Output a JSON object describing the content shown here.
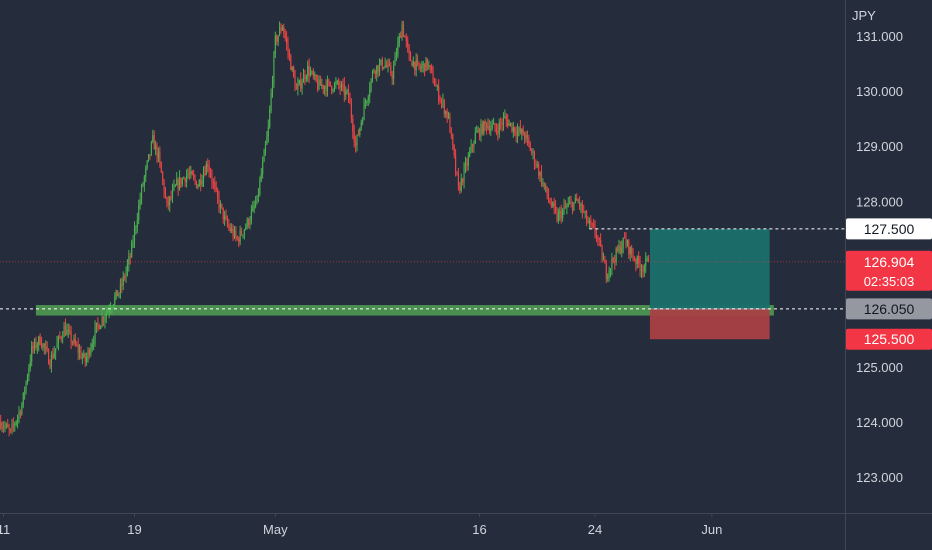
{
  "chart_data": {
    "type": "candlestick",
    "unit_label": "JPY",
    "y_axis": {
      "ylim": [
        122.35,
        131.65
      ],
      "ticks": [
        "131.000",
        "130.000",
        "129.000",
        "128.000",
        "125.000",
        "124.000",
        "123.000"
      ],
      "tick_values": [
        131,
        130,
        129,
        128,
        125,
        124,
        123
      ]
    },
    "x_axis": {
      "labels": [
        "11",
        "19",
        "May",
        "16",
        "24",
        "Jun"
      ],
      "label_index": [
        2,
        95,
        195,
        340,
        422,
        505
      ],
      "total_bars": 600
    },
    "candle_count": 460,
    "path_anchors": [
      [
        0,
        124.0
      ],
      [
        7,
        123.8
      ],
      [
        15,
        124.3
      ],
      [
        22,
        125.3
      ],
      [
        28,
        125.5
      ],
      [
        35,
        125.1
      ],
      [
        45,
        125.7
      ],
      [
        55,
        125.3
      ],
      [
        60,
        125.1
      ],
      [
        68,
        125.7
      ],
      [
        75,
        126.0
      ],
      [
        85,
        126.4
      ],
      [
        92,
        127.0
      ],
      [
        100,
        128.2
      ],
      [
        108,
        129.1
      ],
      [
        112,
        128.8
      ],
      [
        118,
        127.9
      ],
      [
        125,
        128.3
      ],
      [
        133,
        128.5
      ],
      [
        140,
        128.3
      ],
      [
        147,
        128.7
      ],
      [
        153,
        128.1
      ],
      [
        160,
        127.6
      ],
      [
        168,
        127.3
      ],
      [
        175,
        127.6
      ],
      [
        182,
        128.0
      ],
      [
        190,
        129.3
      ],
      [
        195,
        130.9
      ],
      [
        200,
        131.2
      ],
      [
        205,
        130.6
      ],
      [
        210,
        130.0
      ],
      [
        218,
        130.4
      ],
      [
        225,
        130.1
      ],
      [
        232,
        130.1
      ],
      [
        240,
        130.1
      ],
      [
        247,
        129.9
      ],
      [
        252,
        129.0
      ],
      [
        258,
        129.7
      ],
      [
        265,
        130.4
      ],
      [
        272,
        130.5
      ],
      [
        278,
        130.3
      ],
      [
        285,
        131.2
      ],
      [
        290,
        130.6
      ],
      [
        297,
        130.4
      ],
      [
        303,
        130.5
      ],
      [
        310,
        130.0
      ],
      [
        318,
        129.5
      ],
      [
        325,
        128.2
      ],
      [
        330,
        128.6
      ],
      [
        337,
        129.2
      ],
      [
        345,
        129.4
      ],
      [
        352,
        129.3
      ],
      [
        358,
        129.5
      ],
      [
        365,
        129.3
      ],
      [
        372,
        129.2
      ],
      [
        380,
        128.7
      ],
      [
        388,
        128.1
      ],
      [
        395,
        127.7
      ],
      [
        402,
        127.9
      ],
      [
        410,
        128.0
      ],
      [
        417,
        127.6
      ],
      [
        423,
        127.4
      ],
      [
        430,
        126.7
      ],
      [
        436,
        127.0
      ],
      [
        443,
        127.3
      ],
      [
        449,
        127.0
      ],
      [
        455,
        126.8
      ],
      [
        460,
        126.904
      ]
    ],
    "support_zone": {
      "low": 125.93,
      "high": 126.12
    },
    "position": {
      "entry": 126.05,
      "target": 127.5,
      "stop": 125.5,
      "start_index": 461,
      "end_index": 546
    },
    "price_badges": [
      {
        "label": "127.500",
        "value": 127.5,
        "bg": "#ffffff",
        "fg": "#131722"
      },
      {
        "label": "126.904",
        "value": 126.904,
        "bg": "#f23645",
        "fg": "#ffffff",
        "sub": "02:35:03"
      },
      {
        "label": "126.050",
        "value": 126.05,
        "bg": "#9598a1",
        "fg": "#131722"
      },
      {
        "label": "125.500",
        "value": 125.5,
        "bg": "#f23645",
        "fg": "#ffffff"
      }
    ],
    "colors": {
      "background": "#252d3c",
      "up": "#4caf50",
      "down": "#ef4444",
      "support_zone": "#4f9a51",
      "target_zone": "#1a6f6a",
      "stop_zone": "#a84044",
      "text": "#d1d4dc",
      "axis_line": "#434651"
    },
    "grid": false
  }
}
